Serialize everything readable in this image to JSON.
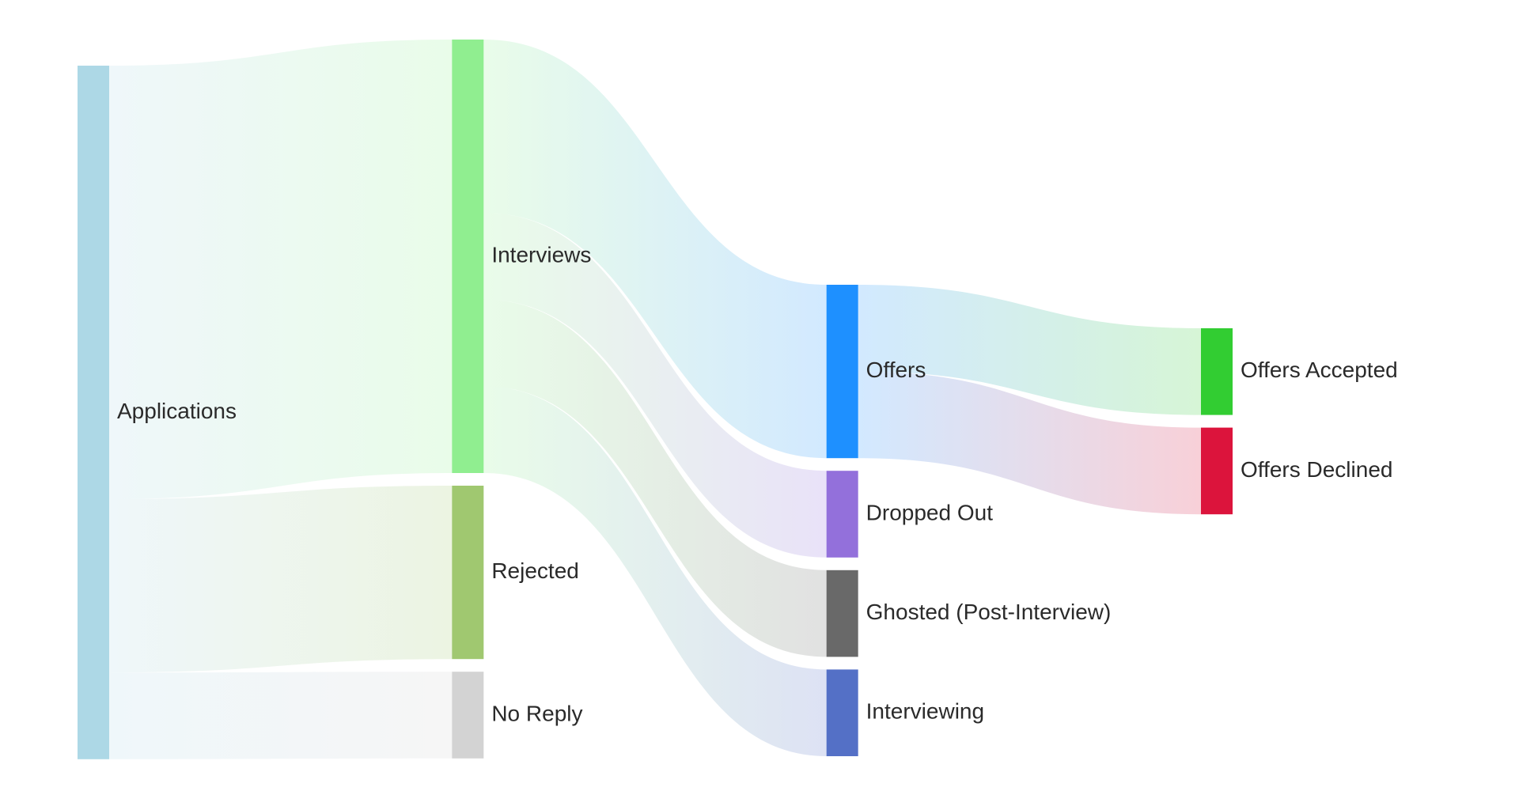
{
  "chart_data": {
    "type": "sankey",
    "title": "",
    "nodes": [
      {
        "id": "applications",
        "label": "Applications",
        "color": "#ADD8E6",
        "column": 0
      },
      {
        "id": "interviews",
        "label": "Interviews",
        "color": "#90EE90",
        "column": 1
      },
      {
        "id": "rejected",
        "label": "Rejected",
        "color": "#A0C870",
        "column": 1
      },
      {
        "id": "no_reply",
        "label": "No Reply",
        "color": "#D3D3D3",
        "column": 1
      },
      {
        "id": "offers",
        "label": "Offers",
        "color": "#1E90FF",
        "column": 2
      },
      {
        "id": "dropped_out",
        "label": "Dropped Out",
        "color": "#9370DB",
        "column": 2
      },
      {
        "id": "ghosted",
        "label": "Ghosted (Post-Interview)",
        "color": "#696969",
        "column": 2
      },
      {
        "id": "interviewing",
        "label": "Interviewing",
        "color": "#5470C6",
        "column": 2
      },
      {
        "id": "offers_accepted",
        "label": "Offers Accepted",
        "color": "#32CD32",
        "column": 3
      },
      {
        "id": "offers_declined",
        "label": "Offers Declined",
        "color": "#DC143C",
        "column": 3
      }
    ],
    "links": [
      {
        "source": "applications",
        "target": "interviews",
        "value": 20
      },
      {
        "source": "applications",
        "target": "rejected",
        "value": 8
      },
      {
        "source": "applications",
        "target": "no_reply",
        "value": 4
      },
      {
        "source": "interviews",
        "target": "offers",
        "value": 8
      },
      {
        "source": "interviews",
        "target": "dropped_out",
        "value": 4
      },
      {
        "source": "interviews",
        "target": "ghosted",
        "value": 4
      },
      {
        "source": "interviews",
        "target": "interviewing",
        "value": 4
      },
      {
        "source": "offers",
        "target": "offers_accepted",
        "value": 4
      },
      {
        "source": "offers",
        "target": "offers_declined",
        "value": 4
      }
    ]
  }
}
